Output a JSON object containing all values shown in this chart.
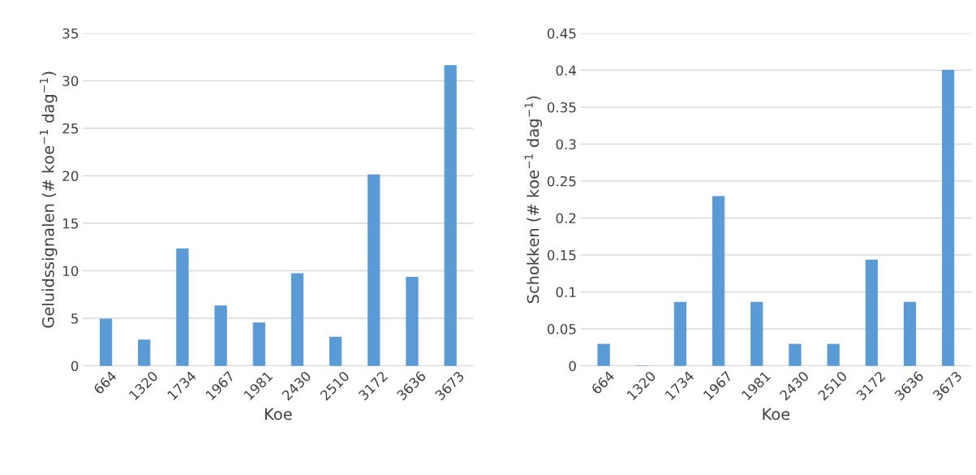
{
  "chart_data": [
    {
      "type": "bar",
      "xlabel": "Koe",
      "ylabel": "Geluidssignalen (# koe$^{−1}$ dag$^{−1}$)",
      "categories": [
        "664",
        "1320",
        "1734",
        "1967",
        "1981",
        "2430",
        "2510",
        "3172",
        "3636",
        "3673"
      ],
      "values": [
        4.9,
        2.7,
        12.3,
        6.3,
        4.5,
        9.7,
        3.0,
        20.1,
        9.3,
        31.6
      ],
      "color": "#5b9bd5",
      "ylim": [
        0,
        35
      ],
      "yticks": [
        0,
        5,
        10,
        15,
        20,
        25,
        30,
        35
      ],
      "grid": "y",
      "legend": false
    },
    {
      "type": "bar",
      "xlabel": "Koe",
      "ylabel": "Schokken (# koe$^{−1}$ dag$^{−1}$)",
      "categories": [
        "664",
        "1320",
        "1734",
        "1967",
        "1981",
        "2430",
        "2510",
        "3172",
        "3636",
        "3673"
      ],
      "values": [
        0.029,
        0,
        0.086,
        0.229,
        0.086,
        0.029,
        0.029,
        0.143,
        0.086,
        0.4
      ],
      "color": "#5b9bd5",
      "ylim": [
        0,
        0.45
      ],
      "yticks": [
        0,
        0.05,
        0.1,
        0.15,
        0.2,
        0.25,
        0.3,
        0.35,
        0.4,
        0.45
      ],
      "grid": "y",
      "legend": false
    }
  ]
}
